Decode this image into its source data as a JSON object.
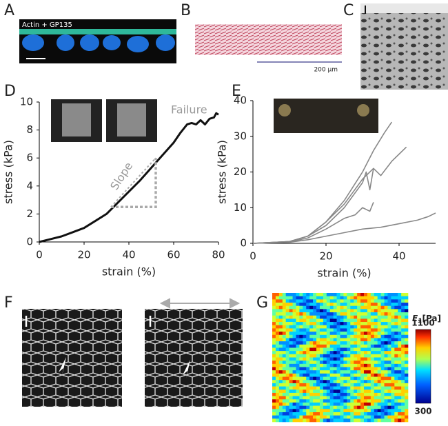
{
  "panel_labels": [
    "A",
    "B",
    "C",
    "D",
    "E",
    "F",
    "G"
  ],
  "panel_a": {
    "stain_label": "Actin + GP135"
  },
  "panel_b": {
    "scale_bar_label": "200 µm"
  },
  "panel_g": {
    "colorbar_symbol": "E",
    "colorbar_subscript": "1",
    "colorbar_unit": "[Pa]",
    "colorbar_ticks": [
      300,
      1100
    ]
  },
  "chart_data": [
    {
      "type": "line",
      "xlabel": "strain (%)",
      "ylabel": "stress (kPa)",
      "x": [
        0,
        5,
        10,
        15,
        20,
        25,
        30,
        35,
        40,
        45,
        50,
        55,
        60,
        63,
        66,
        68,
        70,
        72,
        74,
        76,
        78,
        79,
        80
      ],
      "series": [
        {
          "color": "#111111",
          "values": [
            0,
            0.2,
            0.4,
            0.7,
            1.0,
            1.5,
            2.0,
            2.8,
            3.6,
            4.4,
            5.3,
            6.2,
            7.1,
            7.8,
            8.4,
            8.5,
            8.4,
            8.7,
            8.4,
            8.8,
            8.9,
            9.2,
            9.1
          ]
        }
      ],
      "annotations": [
        "Failure",
        "Slope"
      ],
      "slope_triangle": {
        "x": [
          32,
          52
        ],
        "y": [
          2.5,
          6
        ]
      },
      "xlim": [
        0,
        80
      ],
      "ylim": [
        0,
        10
      ],
      "xticks": [
        0,
        20,
        40,
        60,
        80
      ],
      "yticks": [
        0,
        2,
        4,
        6,
        8,
        10
      ]
    },
    {
      "type": "line",
      "xlabel": "strain (%)",
      "ylabel": "stress (kPa)",
      "series": [
        {
          "color": "#888888",
          "x": [
            0,
            10,
            15,
            20,
            25,
            30,
            33,
            36,
            38
          ],
          "values": [
            0,
            0.5,
            2,
            6,
            12,
            20,
            26,
            31,
            34
          ]
        },
        {
          "color": "#888888",
          "x": [
            0,
            10,
            15,
            20,
            25,
            30,
            33,
            35,
            38,
            40,
            42
          ],
          "values": [
            0,
            0.5,
            2,
            6,
            11,
            18,
            21,
            19,
            23,
            25,
            27
          ]
        },
        {
          "color": "#888888",
          "x": [
            0,
            10,
            15,
            20,
            25,
            30,
            31,
            32,
            33
          ],
          "values": [
            0,
            0.5,
            2,
            5,
            10,
            17,
            20,
            15,
            21
          ]
        },
        {
          "color": "#888888",
          "x": [
            0,
            10,
            15,
            20,
            25,
            28,
            30,
            32,
            33
          ],
          "values": [
            0,
            0.4,
            1.5,
            4,
            7,
            8,
            10,
            9,
            11.5
          ]
        },
        {
          "color": "#888888",
          "x": [
            0,
            10,
            15,
            20,
            25,
            30,
            35,
            40,
            45,
            48,
            50
          ],
          "values": [
            0,
            0.3,
            1,
            2,
            3,
            4,
            4.5,
            5.5,
            6.5,
            7.5,
            8.5
          ]
        }
      ],
      "xlim": [
        0,
        50
      ],
      "ylim": [
        0,
        40
      ],
      "xticks": [
        0,
        20,
        40
      ],
      "yticks": [
        0,
        10,
        20,
        30,
        40
      ]
    }
  ]
}
